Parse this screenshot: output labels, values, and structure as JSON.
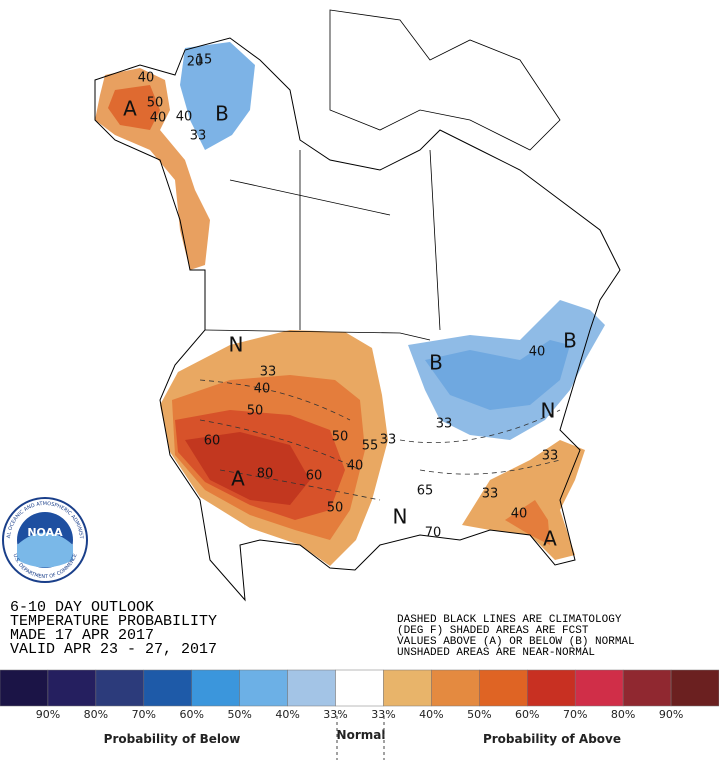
{
  "title_block": {
    "lines": [
      "6-10 DAY OUTLOOK",
      "TEMPERATURE PROBABILITY",
      "MADE  17 APR 2017",
      "VALID  APR 23 - 27, 2017"
    ]
  },
  "notes": [
    "DASHED BLACK LINES ARE CLIMATOLOGY",
    "(DEG F) SHADED AREAS ARE FCST",
    "VALUES ABOVE (A) OR BELOW (B) NORMAL",
    "UNSHADED AREAS ARE NEAR-NORMAL"
  ],
  "logo": {
    "text": "NOAA",
    "ring_top": "NATIONAL OCEANIC AND ATMOSPHERIC ADMINISTRATION",
    "ring_bottom": "U.S. DEPARTMENT OF COMMERCE"
  },
  "map_labels": [
    "A",
    "40",
    "50",
    "40",
    "B",
    "33",
    "40",
    "20",
    "15",
    "N",
    "33",
    "40",
    "50",
    "60",
    "A",
    "80",
    "60",
    "50",
    "40",
    "50",
    "55",
    "33",
    "B",
    "33",
    "40",
    "B",
    "N",
    "N",
    "33",
    "40",
    "33",
    "A",
    "65",
    "70"
  ],
  "legend": {
    "colors": [
      "#1b1446",
      "#251f5f",
      "#2c3b7b",
      "#1e5aa8",
      "#3b96dc",
      "#6cb0e6",
      "#a3c4e6",
      "#ffffff",
      "#e8b46a",
      "#e48a40",
      "#df6424",
      "#c83022",
      "#d02e48",
      "#902830",
      "#6b2020"
    ],
    "labels": [
      "90%",
      "80%",
      "70%",
      "60%",
      "50%",
      "40%",
      "33%",
      "33%",
      "40%",
      "50%",
      "60%",
      "70%",
      "80%",
      "90%"
    ],
    "below": "Probability of Below",
    "normal": "Normal",
    "above": "Probability of Above"
  }
}
